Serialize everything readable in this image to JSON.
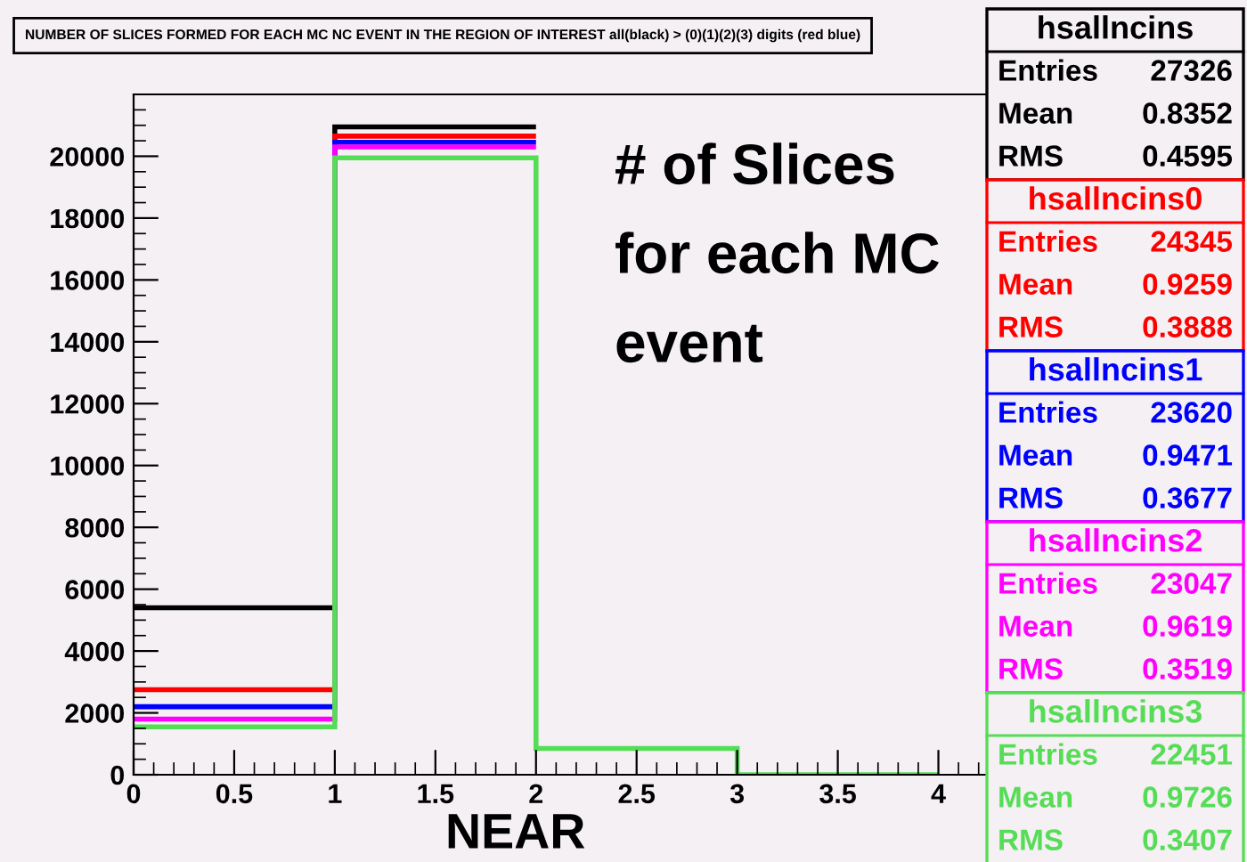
{
  "chart_data": {
    "type": "histogram",
    "title": "NUMBER OF SLICES FORMED FOR EACH MC NC EVENT IN THE REGION OF INTEREST all(black) > (0)(1)(2)(3) digits (red blue)",
    "bins": [
      0,
      1,
      2,
      3,
      4
    ],
    "series": [
      {
        "name": "hsallncins",
        "color": "#000000",
        "bins": [
          0,
          1,
          2
        ],
        "values": [
          5400,
          20950
        ]
      },
      {
        "name": "hsallncins0",
        "color": "#ff0000",
        "bins": [
          0,
          1,
          2
        ],
        "values": [
          2750,
          20650
        ]
      },
      {
        "name": "hsallncins1",
        "color": "#0000ff",
        "bins": [
          0,
          1,
          2
        ],
        "values": [
          2200,
          20450
        ]
      },
      {
        "name": "hsallncins2",
        "color": "#ff00ff",
        "bins": [
          0,
          1,
          2
        ],
        "values": [
          1800,
          20300
        ]
      },
      {
        "name": "hsallncins3",
        "color": "#55dd55",
        "values": [
          1550,
          19950,
          850,
          0
        ]
      }
    ],
    "xlim": [
      0,
      4.25
    ],
    "xticks": [
      0,
      0.5,
      1,
      1.5,
      2,
      2.5,
      3,
      3.5,
      4
    ],
    "ylim": [
      0,
      22000
    ],
    "yticks": [
      0,
      2000,
      4000,
      6000,
      8000,
      10000,
      12000,
      14000,
      16000,
      18000,
      20000
    ],
    "grid": false,
    "annotations": [
      "Entries 27326",
      "Mean 0.8352",
      "RMS 0.4595",
      "Entries 24345",
      "Mean 0.9259",
      "RMS 0.3888",
      "Entries 23620",
      "Mean 0.9471",
      "RMS 0.3677",
      "Entries 23047",
      "Mean 0.9619",
      "RMS 0.3519",
      "Entries 22451",
      "Mean 0.9726",
      "RMS 0.3407",
      "# of Slices",
      "for each MC",
      "event",
      "NEAR"
    ]
  }
}
